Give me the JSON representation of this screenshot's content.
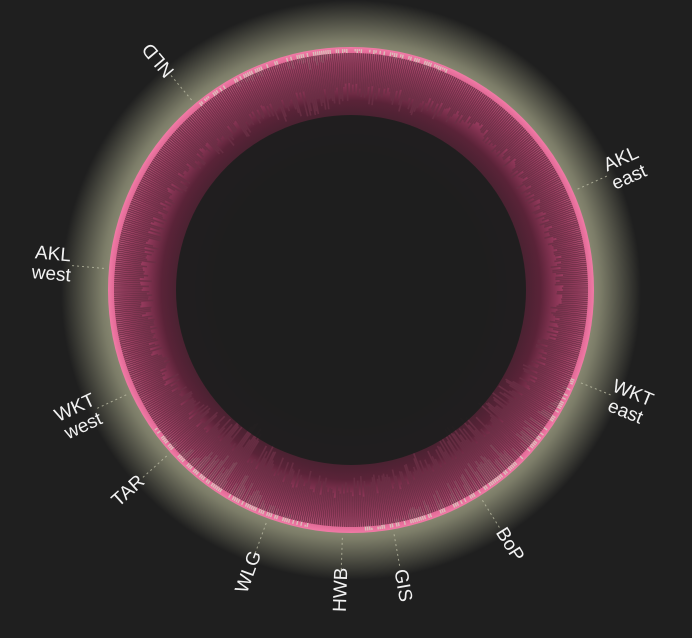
{
  "chart_data": {
    "type": "radial-area",
    "colors": {
      "background": "#1f1f1f",
      "outer_glow": "#c8c9a4",
      "inner_band": "#ef6f9b",
      "series_light": "#d8d8c4",
      "series_dark": "#6a2f45"
    },
    "regions": [
      {
        "id": "nld",
        "lines": [
          "NLD"
        ],
        "angle": -40
      },
      {
        "id": "akl-east",
        "lines": [
          "AKL",
          "east"
        ],
        "angle": 66
      },
      {
        "id": "wkt-east",
        "lines": [
          "WKT",
          "east"
        ],
        "angle": 112
      },
      {
        "id": "bop",
        "lines": [
          "BoP"
        ],
        "angle": 148
      },
      {
        "id": "gis",
        "lines": [
          "GIS"
        ],
        "angle": 170
      },
      {
        "id": "hwb",
        "lines": [
          "HWB"
        ],
        "angle": 182
      },
      {
        "id": "wlg",
        "lines": [
          "WLG"
        ],
        "angle": 200
      },
      {
        "id": "tar",
        "lines": [
          "TAR"
        ],
        "angle": 228
      },
      {
        "id": "wkt-west",
        "lines": [
          "WKT",
          "west"
        ],
        "angle": 245
      },
      {
        "id": "akl-west",
        "lines": [
          "AKL",
          "west"
        ],
        "angle": 275
      }
    ],
    "series_profile": [
      {
        "angle": 0,
        "value": 0.55
      },
      {
        "angle": 20,
        "value": 0.6
      },
      {
        "angle": 40,
        "value": 0.35
      },
      {
        "angle": 60,
        "value": 0.45
      },
      {
        "angle": 80,
        "value": 0.3
      },
      {
        "angle": 100,
        "value": 0.35
      },
      {
        "angle": 120,
        "value": 0.7
      },
      {
        "angle": 140,
        "value": 0.9
      },
      {
        "angle": 155,
        "value": 0.8
      },
      {
        "angle": 170,
        "value": 0.6
      },
      {
        "angle": 185,
        "value": 0.5
      },
      {
        "angle": 200,
        "value": 0.65
      },
      {
        "angle": 215,
        "value": 0.95
      },
      {
        "angle": 230,
        "value": 0.6
      },
      {
        "angle": 250,
        "value": 0.4
      },
      {
        "angle": 270,
        "value": 0.35
      },
      {
        "angle": 290,
        "value": 0.4
      },
      {
        "angle": 310,
        "value": 0.5
      },
      {
        "angle": 330,
        "value": 0.6
      },
      {
        "angle": 350,
        "value": 0.7
      }
    ]
  }
}
